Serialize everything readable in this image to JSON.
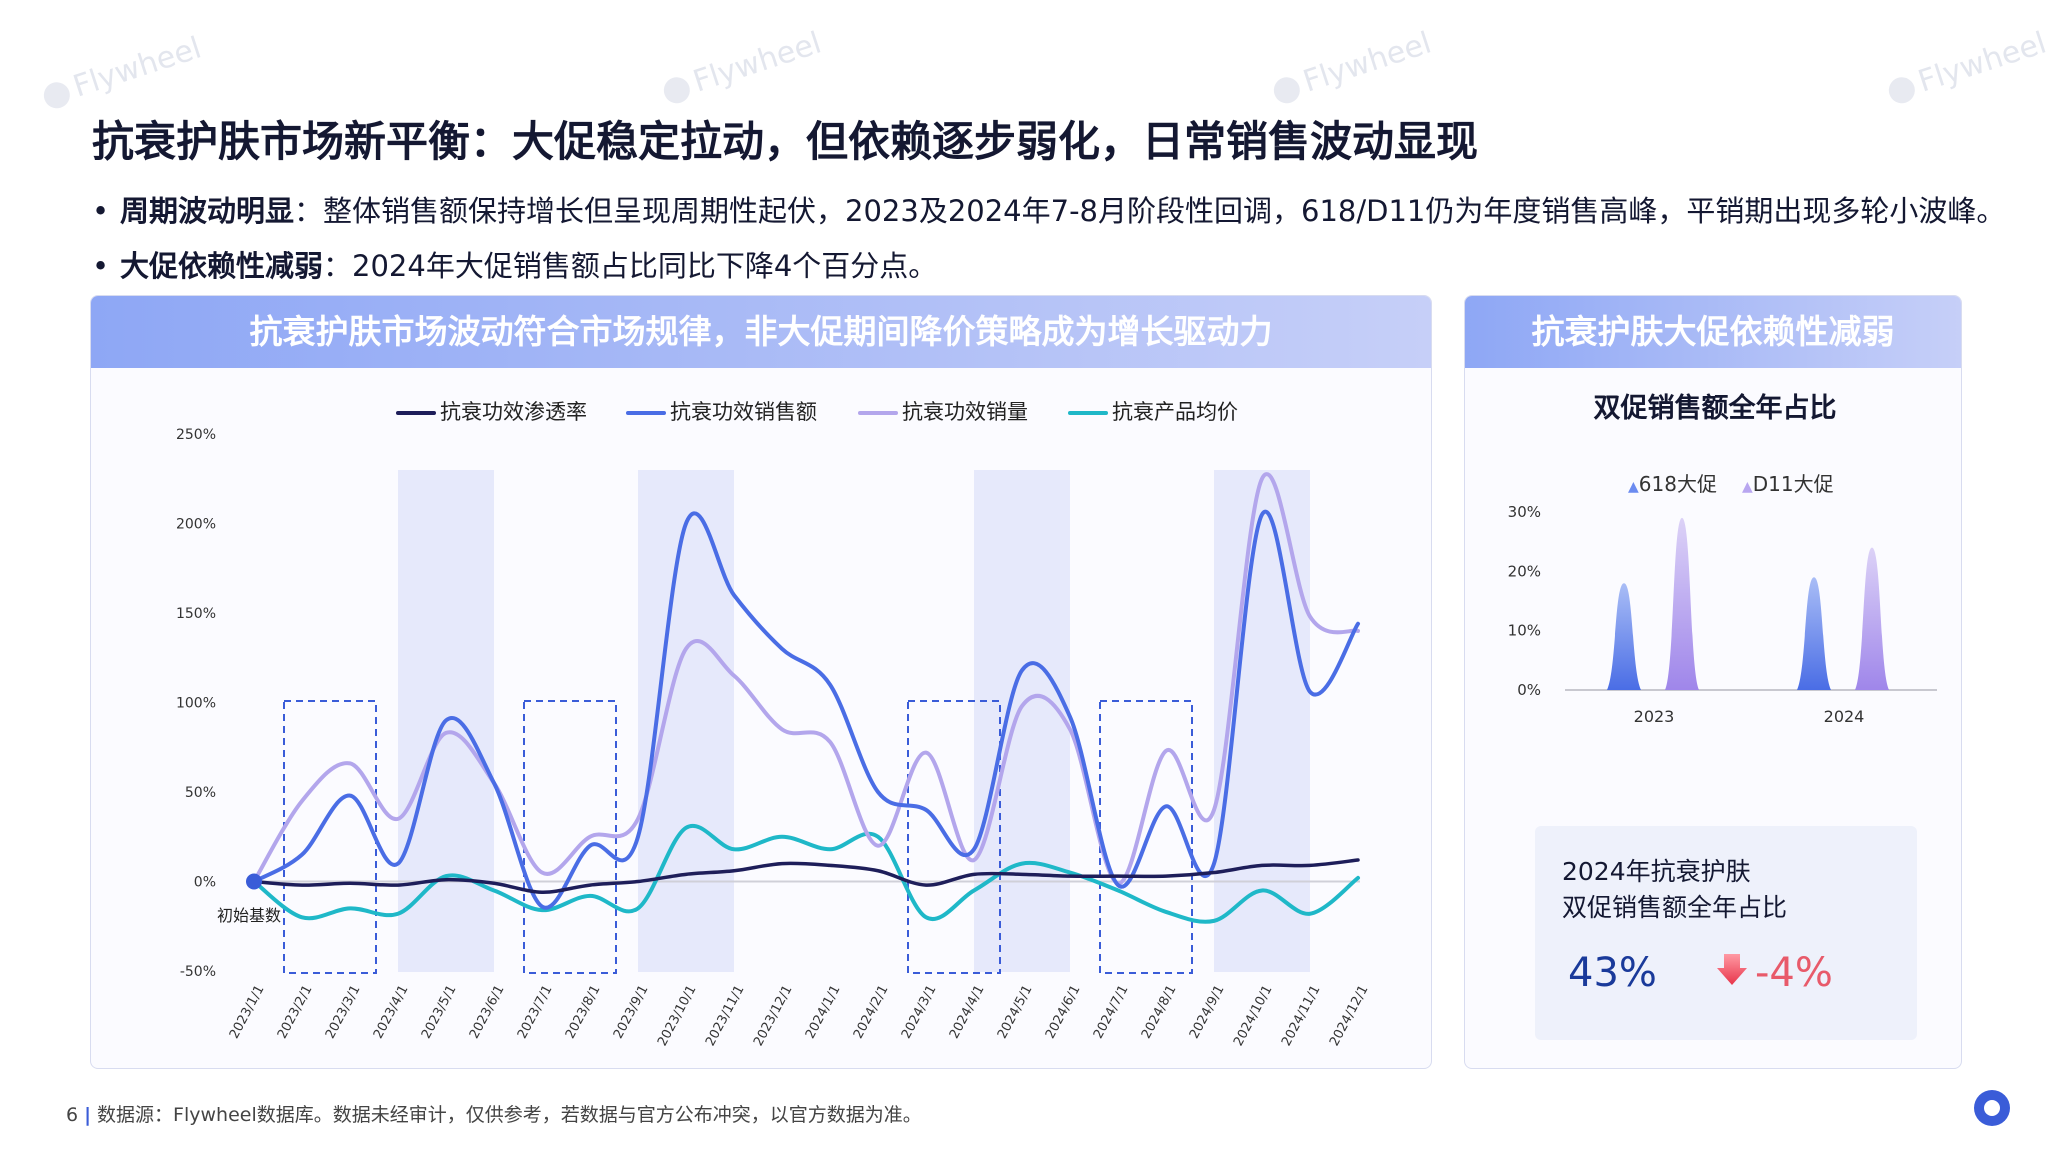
{
  "slide_number": "6",
  "title": "抗衰护肤市场新平衡：大促稳定拉动，但依赖逐步弱化，日常销售波动显现",
  "bullets": [
    {
      "bold": "周期波动明显",
      "text": "：整体销售额保持增长但呈现周期性起伏，2023及2024年7-8月阶段性回调，618/D11仍为年度销售高峰，平销期出现多轮小波峰。"
    },
    {
      "bold": "大促依赖性减弱",
      "text": "：2024年大促销售额占比同比下降4个百分点。"
    }
  ],
  "left_panel": {
    "header": "抗衰护肤市场波动符合市场规律，非大促期间降价策略成为增长驱动力"
  },
  "right_panel": {
    "header": "抗衰护肤大促依赖性减弱",
    "subtitle": "双促销售额全年占比",
    "kpi": {
      "title_line1": "2024年抗衰护肤",
      "title_line2": "双促销售额全年占比",
      "value": "43%",
      "change": "-4%",
      "change_icon": "down-arrow-icon"
    }
  },
  "footer": {
    "source": "数据源：Flywheel数据库。数据未经审计，仅供参考，若数据与官方公布冲突，以官方数据为准。"
  },
  "watermark": "Flywheel",
  "colors": {
    "penetration": "#1e1e5a",
    "sales_amount": "#4a6de5",
    "sales_volume": "#b3a6ec",
    "avg_price": "#1fb8c8",
    "promo_band": "#e6e9fb",
    "dashed_box": "#3a5cd8",
    "bar_618": "#6b8bf0",
    "bar_d11": "#b8a6f0",
    "header_gradient_start": "#8ea7f5"
  },
  "chart_data": [
    {
      "type": "line",
      "x": [
        "2023/1/1",
        "2023/2/1",
        "2023/3/1",
        "2023/4/1",
        "2023/5/1",
        "2023/6/1",
        "2023/7/1",
        "2023/8/1",
        "2023/9/1",
        "2023/10/1",
        "2023/11/1",
        "2023/12/1",
        "2024/1/1",
        "2024/2/1",
        "2024/3/1",
        "2024/4/1",
        "2024/5/1",
        "2024/6/1",
        "2024/7/1",
        "2024/8/1",
        "2024/9/1",
        "2024/10/1",
        "2024/11/1",
        "2024/12/1"
      ],
      "ylim": [
        -50,
        250
      ],
      "yticks": [
        "250%",
        "200%",
        "150%",
        "100%",
        "50%",
        "0%",
        "-50%"
      ],
      "annotation": "初始基数",
      "series": [
        {
          "name": "抗衰功效渗透率",
          "values": [
            0,
            -2,
            -1,
            -2,
            1,
            -1,
            -6,
            -2,
            0,
            4,
            6,
            10,
            9,
            6,
            -2,
            4,
            4,
            3,
            3,
            3,
            5,
            9,
            9,
            12
          ]
        },
        {
          "name": "抗衰功效销售额",
          "values": [
            0,
            15,
            48,
            10,
            90,
            55,
            -14,
            20,
            25,
            200,
            160,
            130,
            110,
            50,
            40,
            18,
            118,
            92,
            -2,
            42,
            10,
            205,
            106,
            144
          ]
        },
        {
          "name": "抗衰功效销量",
          "values": [
            0,
            45,
            66,
            35,
            83,
            55,
            5,
            25,
            35,
            130,
            115,
            85,
            78,
            20,
            72,
            12,
            98,
            85,
            -1,
            73,
            40,
            225,
            148,
            140
          ]
        },
        {
          "name": "抗衰产品均价",
          "values": [
            0,
            -20,
            -15,
            -18,
            3,
            -5,
            -16,
            -8,
            -15,
            30,
            18,
            25,
            18,
            25,
            -20,
            -5,
            10,
            5,
            -5,
            -17,
            -22,
            -5,
            -18,
            2
          ]
        }
      ],
      "promo_bands": [
        [
          "2023/4/1",
          "2023/6/1"
        ],
        [
          "2023/9/1",
          "2023/11/1"
        ],
        [
          "2024/4/1",
          "2024/6/1"
        ],
        [
          "2024/9/1",
          "2024/11/1"
        ]
      ],
      "dashed_boxes": [
        [
          "2023/1/1",
          "2023/3/1"
        ],
        [
          "2023/6/1",
          "2023/8/1"
        ],
        [
          "2024/2/1",
          "2024/4/1"
        ],
        [
          "2024/6/1",
          "2024/8/1"
        ]
      ]
    },
    {
      "type": "bar",
      "categories": [
        "2023",
        "2024"
      ],
      "ylim": [
        0,
        30
      ],
      "yticks": [
        "30%",
        "20%",
        "10%",
        "0%"
      ],
      "series": [
        {
          "name": "618大促",
          "values": [
            18,
            19
          ]
        },
        {
          "name": "D11大促",
          "values": [
            29,
            24
          ]
        }
      ]
    }
  ]
}
